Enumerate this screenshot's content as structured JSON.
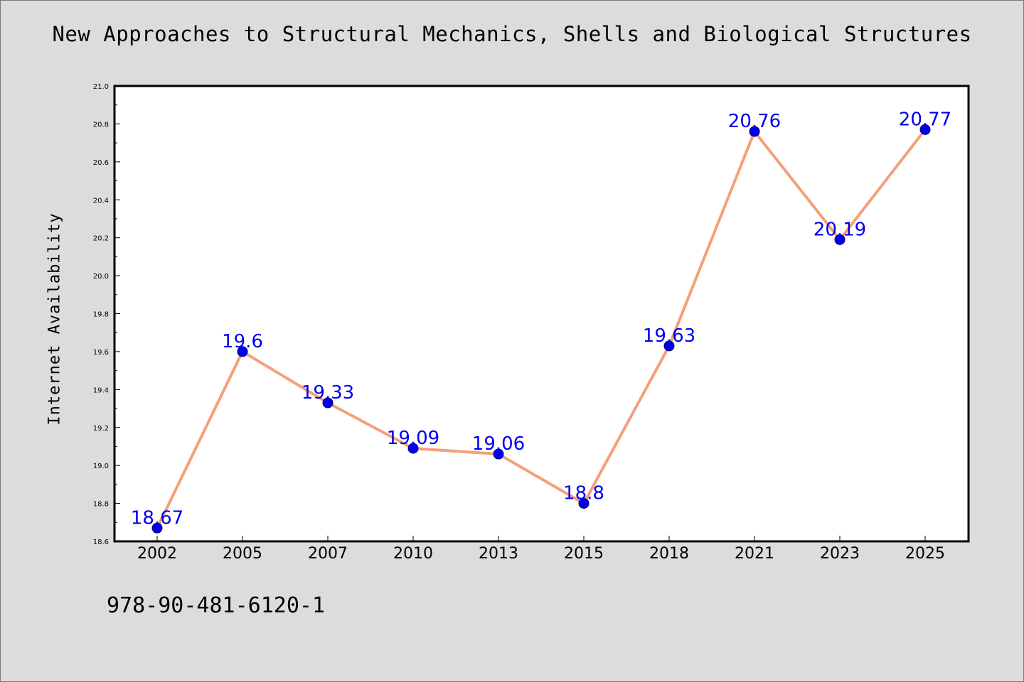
{
  "chart_data": {
    "type": "line",
    "title": "New Approaches to Structural Mechanics, Shells and Biological Structures",
    "xlabel": "",
    "ylabel": "Internet Availability",
    "categories": [
      "2002",
      "2005",
      "2007",
      "2010",
      "2013",
      "2015",
      "2018",
      "2021",
      "2023",
      "2025"
    ],
    "values": [
      18.67,
      19.6,
      19.33,
      19.09,
      19.06,
      18.8,
      19.63,
      20.76,
      20.19,
      20.77
    ],
    "data_labels": [
      "18.67",
      "19.6",
      "19.33",
      "19.09",
      "19.06",
      "18.8",
      "19.63",
      "20.76",
      "20.19",
      "20.77"
    ],
    "ylim": [
      18.6,
      21.0
    ],
    "yticks": [
      "18.6",
      "18.8",
      "19.0",
      "19.2",
      "19.4",
      "19.6",
      "19.8",
      "20.0",
      "20.2",
      "20.4",
      "20.6",
      "20.8",
      "21.0"
    ],
    "grid": false,
    "legend": "none",
    "line_color": "#f4a07a",
    "marker_color": "#0000ee",
    "label_color": "#0000ee"
  },
  "footer": {
    "isbn": "978-90-481-6120-1"
  },
  "colors": {
    "background": "#dcdcdc",
    "plot_background": "#ffffff"
  }
}
